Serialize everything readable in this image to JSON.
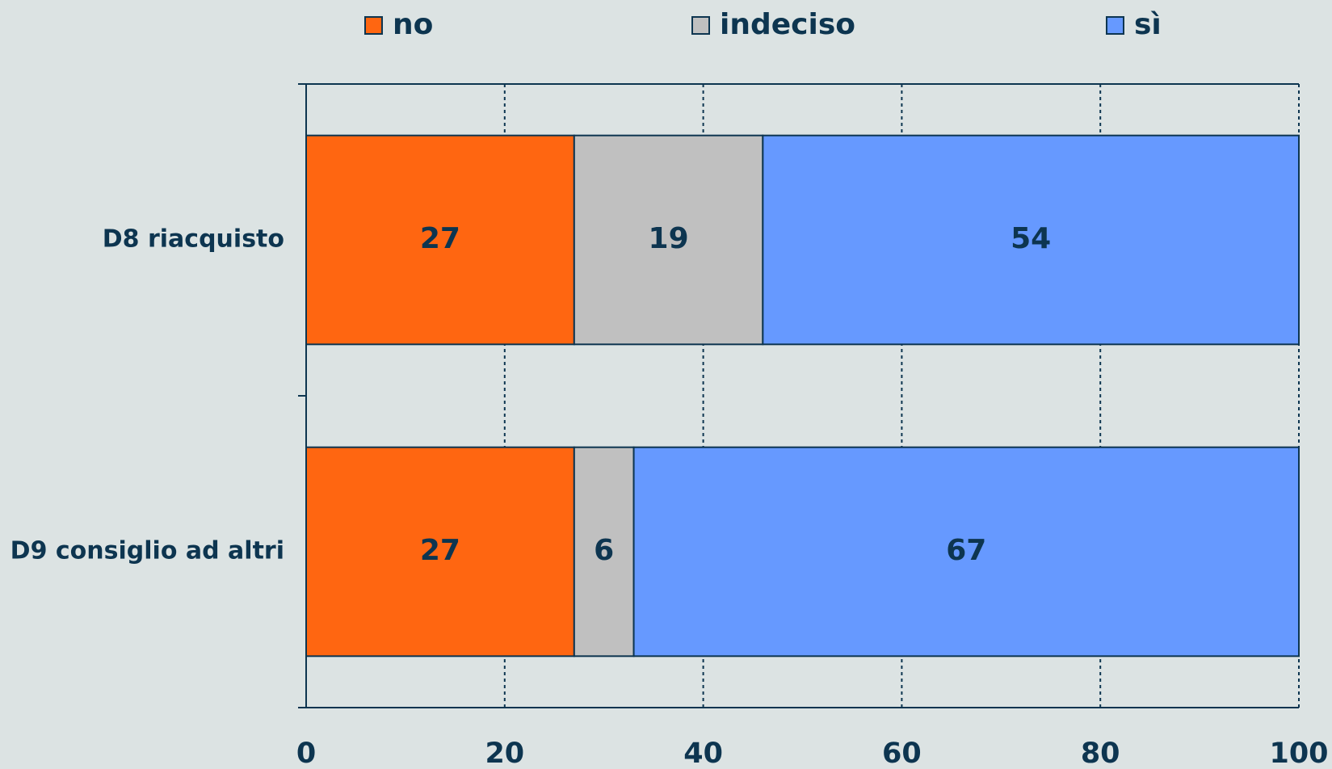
{
  "chart_data": {
    "type": "stacked_barh",
    "categories": [
      "D8 riacquisto",
      "D9 consiglio ad altri"
    ],
    "series": [
      {
        "name": "no",
        "color": "#ff6611",
        "values": [
          27,
          27
        ]
      },
      {
        "name": "indeciso",
        "color": "#c0c0c0",
        "values": [
          19,
          6
        ]
      },
      {
        "name": "sì",
        "color": "#6699ff",
        "values": [
          54,
          67
        ]
      }
    ],
    "xlim": [
      0,
      100
    ],
    "xticks": [
      0,
      20,
      40,
      60,
      80,
      100
    ],
    "grid": true,
    "legend": "top"
  }
}
